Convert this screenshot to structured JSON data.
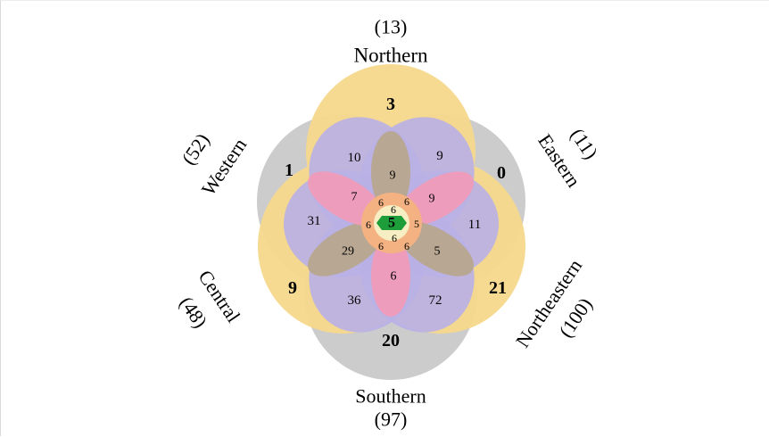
{
  "sets": [
    {
      "key": "N",
      "name": "Northern",
      "count": "(13)"
    },
    {
      "key": "E",
      "name": "Eastern",
      "count": "(11)"
    },
    {
      "key": "NE",
      "name": "Northeastern",
      "count": "(100)"
    },
    {
      "key": "S",
      "name": "Southern",
      "count": "(97)"
    },
    {
      "key": "C",
      "name": "Central",
      "count": "(48)"
    },
    {
      "key": "W",
      "name": "Western",
      "count": "(52)"
    }
  ],
  "regions": {
    "unique": {
      "N": "3",
      "E": "0",
      "NE": "21",
      "S": "20",
      "C": "9",
      "W": "1"
    },
    "outer_pairs": {
      "N_W": "10",
      "N_E": "9",
      "E_NE": "11",
      "NE_S": "72",
      "S_C": "36",
      "C_W": "31"
    },
    "spoke_brown": {
      "N": "9",
      "NE": "5",
      "C": "29"
    },
    "spoke_pink": {
      "E": "9",
      "S": "6",
      "W": "7"
    },
    "ring_inner": [
      "6",
      "6",
      "6",
      "6",
      "6",
      "6"
    ],
    "ring_mid": {
      "top": "6",
      "bottom": "6",
      "right": "5",
      "left": "6"
    },
    "all_six": "5"
  },
  "colors": {
    "grey": "#c9c9c9",
    "yellow": "#f6d88c",
    "lavender": "#b9b0e6",
    "brown": "#b7a78d",
    "pink": "#ef9cb8",
    "orange": "#f4b282",
    "cream": "#f8eec3",
    "green": "#1e9e3a"
  }
}
